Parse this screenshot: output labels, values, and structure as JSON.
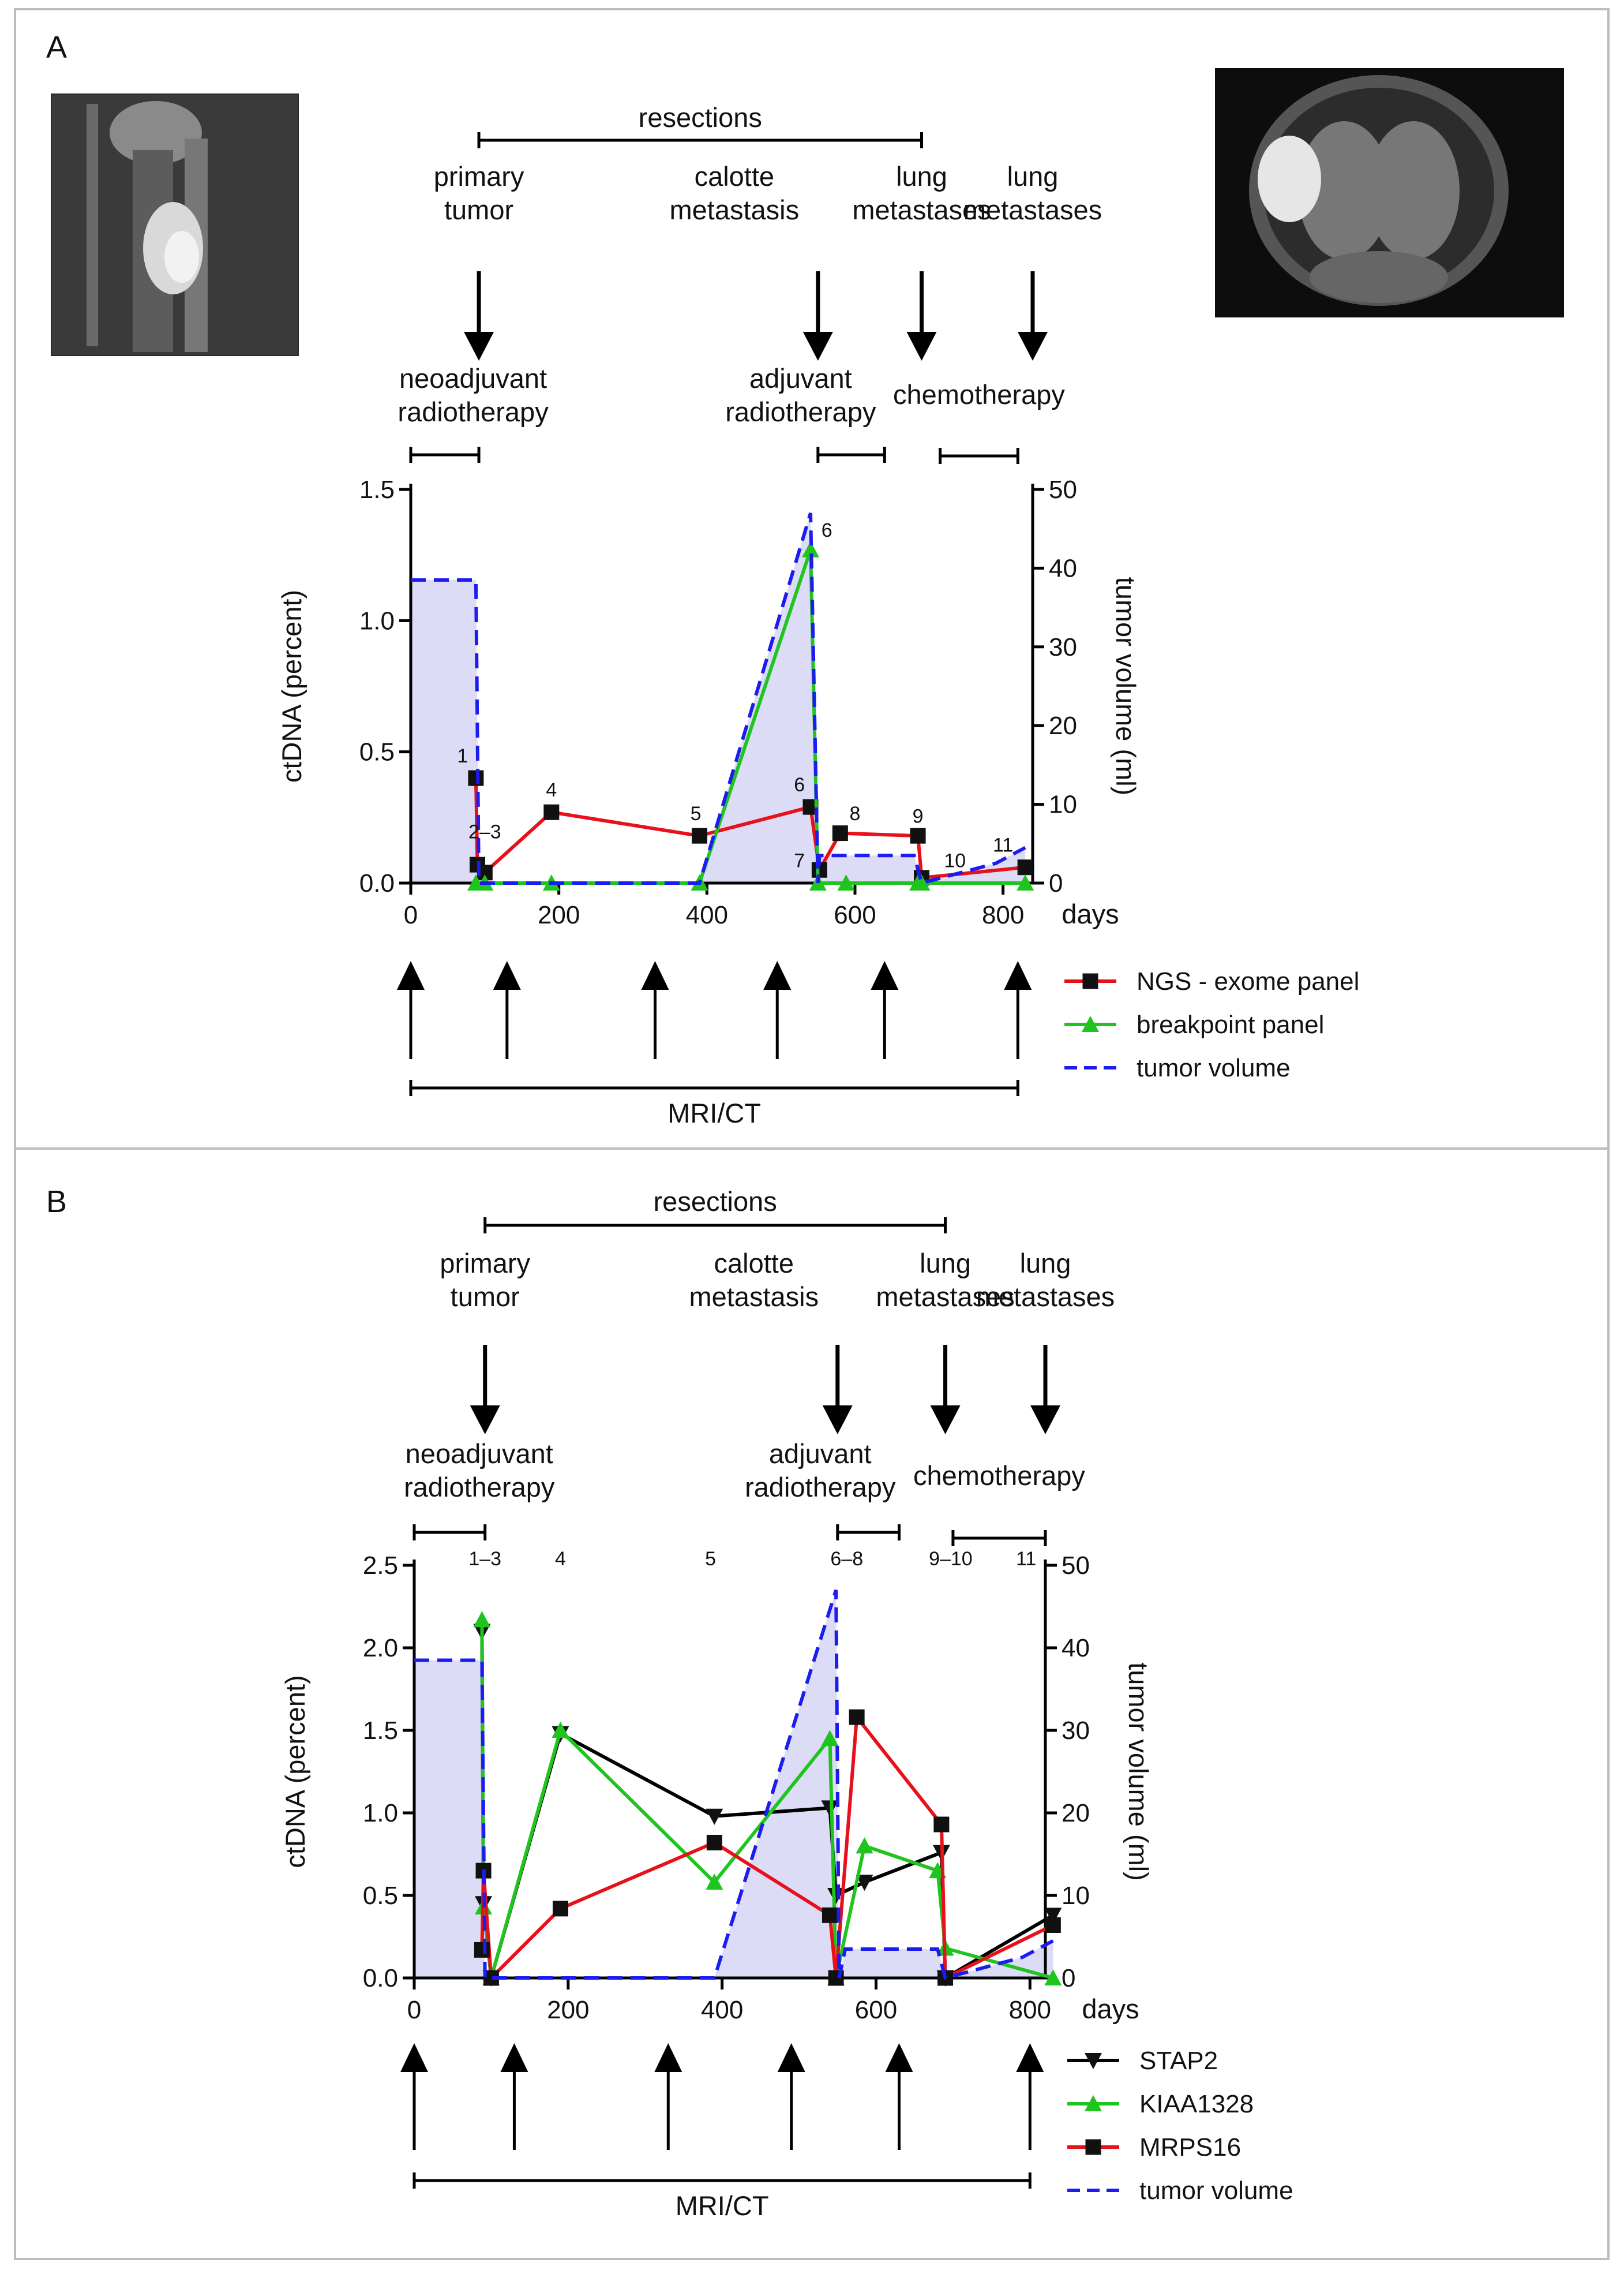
{
  "panels": [
    {
      "label": "A",
      "annotations": {
        "resections": "resections",
        "primary_tumor": [
          "primary",
          "tumor"
        ],
        "calotte_metastasis": [
          "calotte",
          "metastasis"
        ],
        "lung_metastases_1": [
          "lung",
          "metastases"
        ],
        "lung_metastases_2": [
          "lung",
          "metastases"
        ],
        "neoadjuvant_radiotherapy": [
          "neoadjuvant",
          "radiotherapy"
        ],
        "adjuvant_radiotherapy": [
          "adjuvant",
          "radiotherapy"
        ],
        "chemotherapy": "chemotherapy",
        "mri_ct": "MRI/CT"
      },
      "timeline": {
        "resections_span": [
          92,
          690
        ],
        "resection_arrows_days": [
          92,
          550,
          690,
          840
        ],
        "neoadjuvant_span": [
          0,
          92
        ],
        "adjuvant_span": [
          550,
          640
        ],
        "chemotherapy_span": [
          715,
          820
        ],
        "mri_ct_span": [
          0,
          820
        ],
        "mri_ct_arrows_days": [
          0,
          130,
          330,
          495,
          640,
          820
        ]
      },
      "sample_labels": [
        {
          "text": "1",
          "x": 70,
          "y": 0.46
        },
        {
          "text": "2–3",
          "x": 100,
          "y": 0.17
        },
        {
          "text": "4",
          "x": 190,
          "y": 0.33
        },
        {
          "text": "5",
          "x": 385,
          "y": 0.24
        },
        {
          "text": "6",
          "x": 525,
          "y": 0.35
        },
        {
          "text": "6",
          "x": 562,
          "y": 1.32
        },
        {
          "text": "7",
          "x": 525,
          "y": 0.06
        },
        {
          "text": "8",
          "x": 600,
          "y": 0.24
        },
        {
          "text": "9",
          "x": 685,
          "y": 0.23
        },
        {
          "text": "10",
          "x": 735,
          "y": 0.06
        },
        {
          "text": "11",
          "x": 800,
          "y": 0.12
        }
      ],
      "legend": [
        "NGS - exome panel",
        "breakpoint panel",
        "tumor volume"
      ],
      "chart_data": {
        "type": "line",
        "xlabel": "days",
        "ylabel": "ctDNA (percent)",
        "y2label": "tumor volume (ml)",
        "xlim": [
          0,
          840
        ],
        "ylim": [
          0,
          1.5
        ],
        "y2lim": [
          0,
          50
        ],
        "xticks": [
          0,
          200,
          400,
          600,
          800
        ],
        "yticks": [
          0.0,
          0.5,
          1.0,
          1.5
        ],
        "y2ticks": [
          0,
          10,
          20,
          30,
          40,
          50
        ],
        "series": [
          {
            "name": "NGS - exome panel",
            "axis": "left",
            "color": "#e8101a",
            "marker": "square",
            "x": [
              88,
              90,
              100,
              190,
              390,
              540,
              552,
              580,
              685,
              690,
              830
            ],
            "y": [
              0.4,
              0.07,
              0.04,
              0.27,
              0.18,
              0.29,
              0.05,
              0.19,
              0.18,
              0.02,
              0.06
            ]
          },
          {
            "name": "breakpoint panel",
            "axis": "left",
            "color": "#1fc41f",
            "marker": "triangle",
            "x": [
              88,
              100,
              190,
              390,
              540,
              550,
              588,
              685,
              690,
              830
            ],
            "y": [
              0.0,
              0.0,
              0.0,
              0.0,
              1.27,
              0.0,
              0.0,
              0.0,
              0.0,
              0.0
            ]
          },
          {
            "name": "tumor volume",
            "axis": "right",
            "color": "#1c1cf0",
            "dash": true,
            "x": [
              0,
              88,
              92,
              390,
              540,
              550,
              552,
              680,
              690,
              790,
              830
            ],
            "y": [
              38.5,
              38.5,
              0,
              0,
              47,
              0,
              3.5,
              3.5,
              0,
              2.5,
              4.5
            ]
          }
        ]
      }
    },
    {
      "label": "B",
      "annotations": {
        "resections": "resections",
        "primary_tumor": [
          "primary",
          "tumor"
        ],
        "calotte_metastasis": [
          "calotte",
          "metastasis"
        ],
        "lung_metastases_1": [
          "lung",
          "metastases"
        ],
        "lung_metastases_2": [
          "lung",
          "metastases"
        ],
        "neoadjuvant_radiotherapy": [
          "neoadjuvant",
          "radiotherapy"
        ],
        "adjuvant_radiotherapy": [
          "adjuvant",
          "radiotherapy"
        ],
        "chemotherapy": "chemotherapy",
        "mri_ct": "MRI/CT"
      },
      "timeline": {
        "resections_span": [
          92,
          690
        ],
        "resection_arrows_days": [
          92,
          550,
          690,
          820
        ],
        "neoadjuvant_span": [
          0,
          92
        ],
        "adjuvant_span": [
          550,
          630
        ],
        "chemotherapy_span": [
          700,
          820
        ],
        "mri_ct_span": [
          0,
          800
        ],
        "mri_ct_arrows_days": [
          0,
          130,
          330,
          490,
          630,
          800
        ]
      },
      "sample_labels": [
        {
          "text": "1–3",
          "x": 92,
          "y": 2.5
        },
        {
          "text": "4",
          "x": 190,
          "y": 2.5
        },
        {
          "text": "5",
          "x": 385,
          "y": 2.5
        },
        {
          "text": "6–8",
          "x": 562,
          "y": 2.5
        },
        {
          "text": "9–10",
          "x": 697,
          "y": 2.5
        },
        {
          "text": "11",
          "x": 795,
          "y": 2.5
        }
      ],
      "legend": [
        "STAP2",
        "KIAA1328",
        "MRPS16",
        "tumor volume"
      ],
      "chart_data": {
        "type": "line",
        "xlabel": "days",
        "ylabel": "ctDNA (percent)",
        "y2label": "tumor volume (ml)",
        "xlim": [
          0,
          820
        ],
        "ylim": [
          0,
          2.5
        ],
        "y2lim": [
          0,
          50
        ],
        "xticks": [
          0,
          200,
          400,
          600,
          800
        ],
        "yticks": [
          0.0,
          0.5,
          1.0,
          1.5,
          2.0,
          2.5
        ],
        "y2ticks": [
          0,
          10,
          20,
          30,
          40,
          50
        ],
        "series": [
          {
            "name": "STAP2",
            "axis": "left",
            "color": "#000000",
            "marker": "triangle-down",
            "x": [
              88,
              90,
              100,
              190,
              390,
              540,
              548,
              585,
              685,
              690,
              830
            ],
            "y": [
              2.1,
              0.45,
              0.0,
              1.48,
              0.98,
              1.03,
              0.5,
              0.58,
              0.76,
              0.0,
              0.38
            ]
          },
          {
            "name": "KIAA1328",
            "axis": "left",
            "color": "#1fc41f",
            "marker": "triangle",
            "x": [
              88,
              90,
              100,
              190,
              390,
              540,
              548,
              585,
              680,
              690,
              830
            ],
            "y": [
              2.17,
              0.43,
              0.0,
              1.5,
              0.58,
              1.45,
              0.0,
              0.8,
              0.65,
              0.18,
              0.0
            ]
          },
          {
            "name": "MRPS16",
            "axis": "left",
            "color": "#e8101a",
            "marker": "square",
            "x": [
              88,
              90,
              100,
              190,
              390,
              540,
              548,
              575,
              685,
              690,
              830
            ],
            "y": [
              0.17,
              0.65,
              0.0,
              0.42,
              0.82,
              0.38,
              0.0,
              1.58,
              0.93,
              0.0,
              0.32
            ]
          },
          {
            "name": "tumor volume",
            "axis": "right",
            "color": "#1c1cf0",
            "dash": true,
            "x": [
              0,
              88,
              92,
              390,
              548,
              552,
              560,
              680,
              690,
              790,
              830
            ],
            "y": [
              38.5,
              38.5,
              0,
              0,
              47,
              0,
              3.5,
              3.5,
              0,
              2.5,
              4.5
            ]
          }
        ]
      }
    }
  ]
}
